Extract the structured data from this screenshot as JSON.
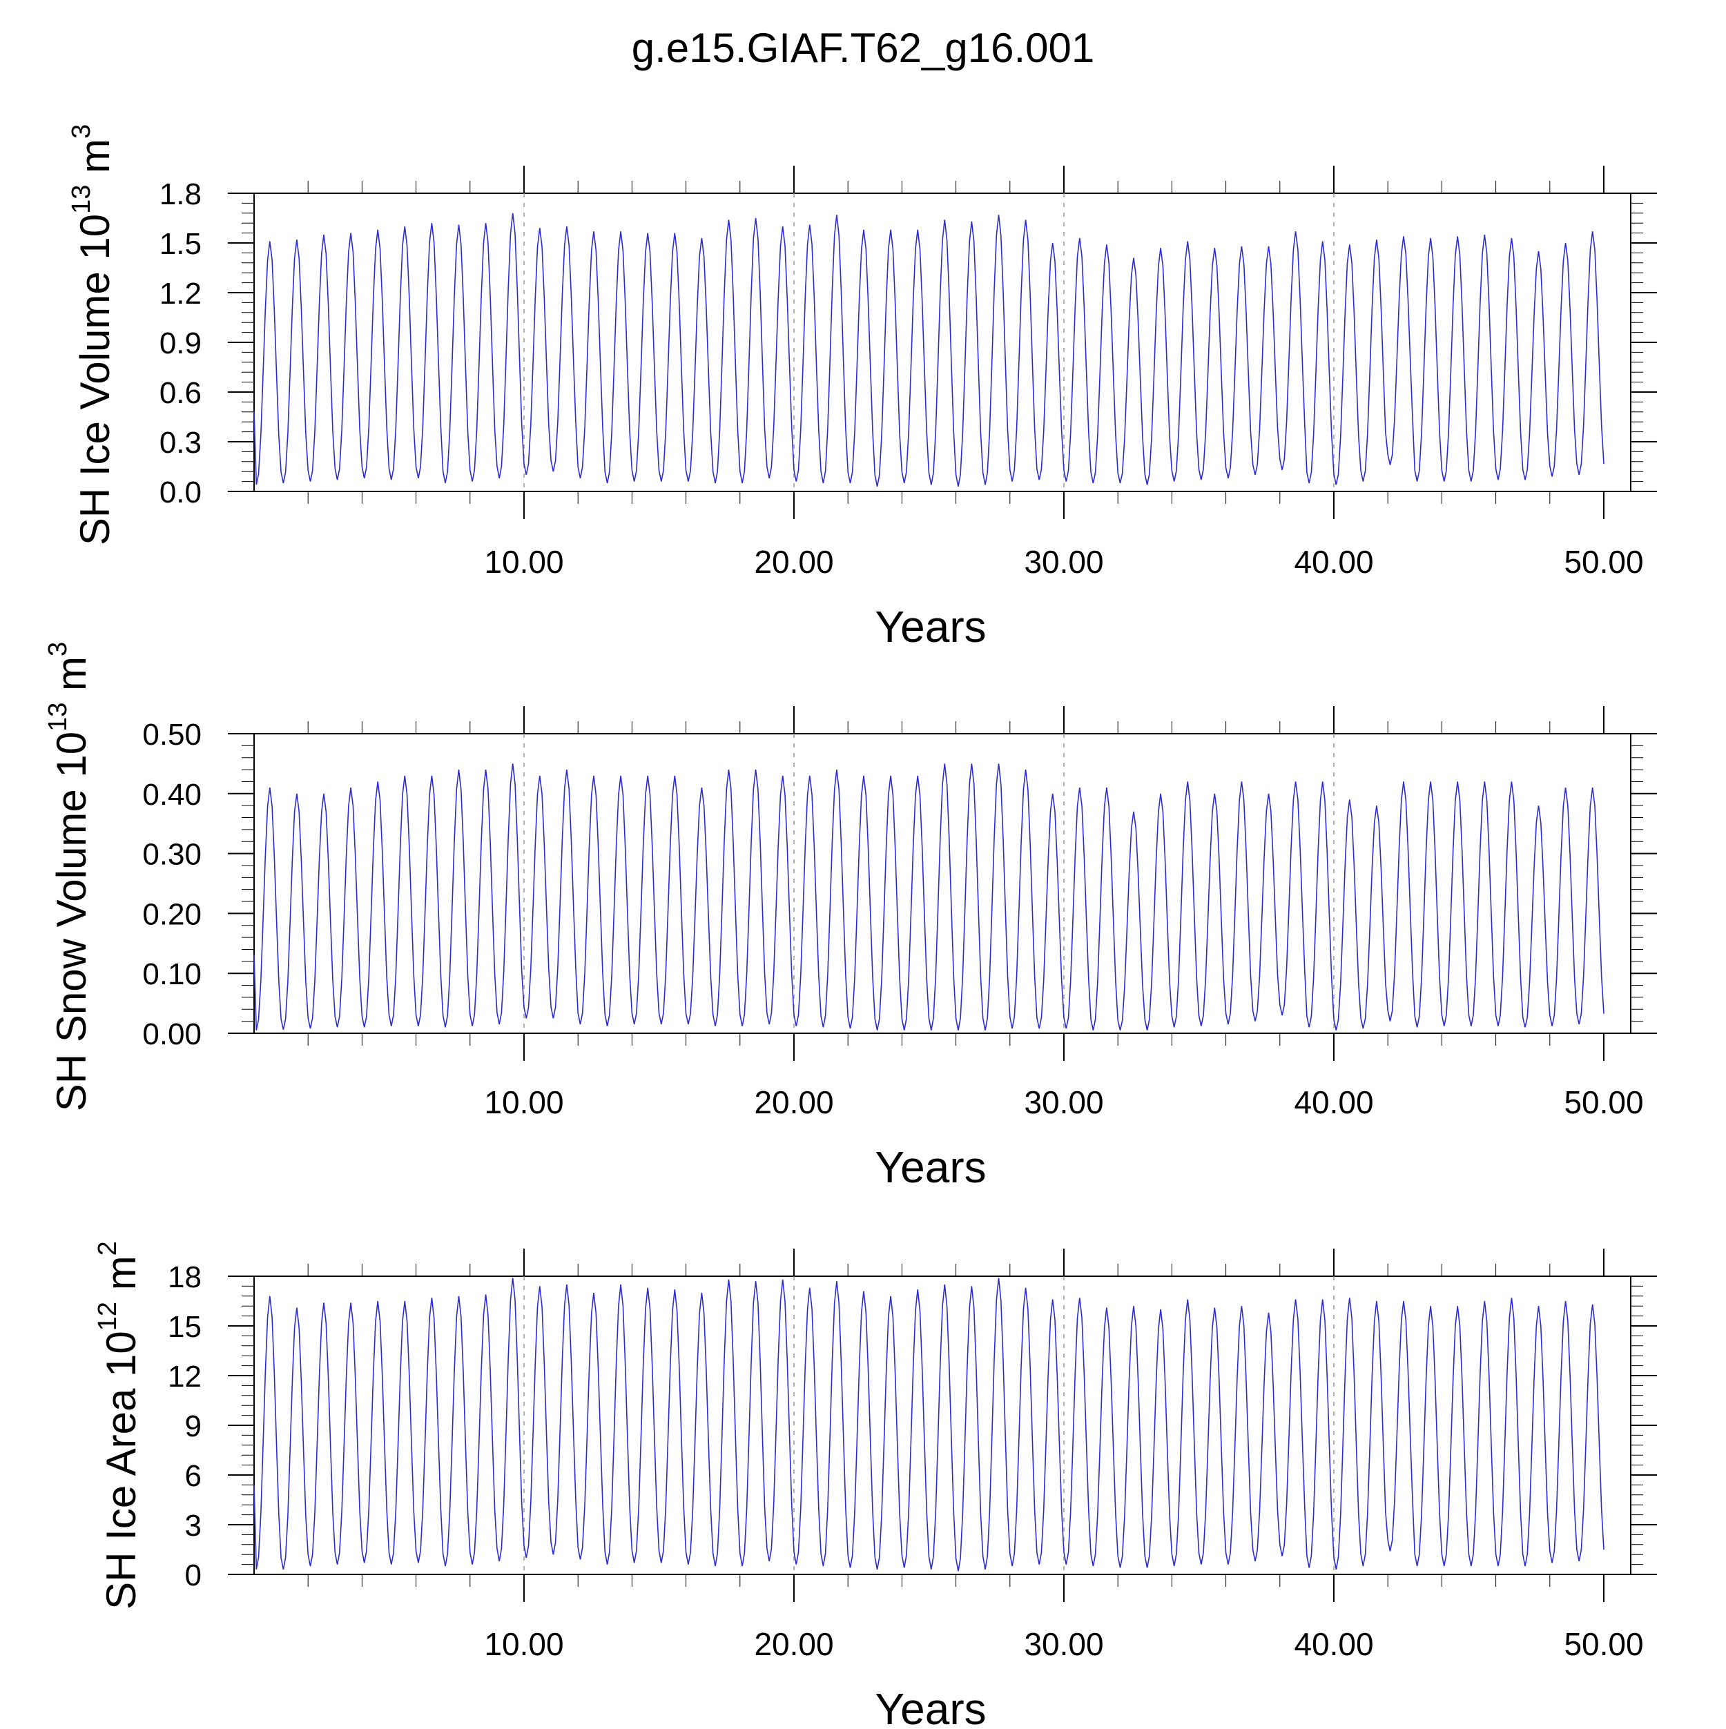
{
  "title": "g.e15.GIAF.T62_g16.001",
  "chart_data": [
    {
      "type": "line",
      "ylabel": "SH Ice Volume 10",
      "ylabel_exp": "13",
      "ylabel_unit": " m",
      "ylabel_unit_exp": "3",
      "xlabel": "Years",
      "xlim": [
        0,
        50
      ],
      "ylim": [
        0.0,
        1.8
      ],
      "xticks": [
        10,
        20,
        30,
        40,
        50
      ],
      "xtick_labels": [
        "10.00",
        "20.00",
        "30.00",
        "40.00",
        "50.00"
      ],
      "yticks": [
        0.0,
        0.3,
        0.6,
        0.9,
        1.2,
        1.5,
        1.8
      ],
      "ytick_labels": [
        "0.0",
        "0.3",
        "0.6",
        "0.9",
        "1.2",
        "1.5",
        "1.8"
      ],
      "series_color": "#2b2bd6",
      "annual_max": [
        1.51,
        1.52,
        1.55,
        1.56,
        1.58,
        1.6,
        1.62,
        1.61,
        1.62,
        1.68,
        1.59,
        1.6,
        1.57,
        1.57,
        1.56,
        1.56,
        1.53,
        1.64,
        1.65,
        1.6,
        1.61,
        1.67,
        1.58,
        1.58,
        1.58,
        1.64,
        1.63,
        1.67,
        1.64,
        1.5,
        1.53,
        1.49,
        1.41,
        1.47,
        1.51,
        1.47,
        1.48,
        1.48,
        1.57,
        1.51,
        1.49,
        1.52,
        1.54,
        1.53,
        1.54,
        1.55,
        1.53,
        1.45,
        1.5,
        1.57
      ],
      "annual_min": [
        0.04,
        0.05,
        0.06,
        0.07,
        0.08,
        0.07,
        0.08,
        0.05,
        0.06,
        0.08,
        0.1,
        0.12,
        0.08,
        0.05,
        0.06,
        0.06,
        0.06,
        0.05,
        0.05,
        0.08,
        0.06,
        0.05,
        0.05,
        0.03,
        0.05,
        0.04,
        0.03,
        0.04,
        0.06,
        0.07,
        0.06,
        0.05,
        0.05,
        0.04,
        0.06,
        0.07,
        0.08,
        0.1,
        0.13,
        0.05,
        0.04,
        0.06,
        0.16,
        0.06,
        0.06,
        0.06,
        0.07,
        0.07,
        0.09,
        0.1
      ]
    },
    {
      "type": "line",
      "ylabel": "SH Snow Volume 10",
      "ylabel_exp": "13",
      "ylabel_unit": " m",
      "ylabel_unit_exp": "3",
      "xlabel": "Years",
      "xlim": [
        0,
        50
      ],
      "ylim": [
        0.0,
        0.5
      ],
      "xticks": [
        10,
        20,
        30,
        40,
        50
      ],
      "xtick_labels": [
        "10.00",
        "20.00",
        "30.00",
        "40.00",
        "50.00"
      ],
      "yticks": [
        0.0,
        0.1,
        0.2,
        0.3,
        0.4,
        0.5
      ],
      "ytick_labels": [
        "0.00",
        "0.10",
        "0.20",
        "0.30",
        "0.40",
        "0.50"
      ],
      "series_color": "#2b2bd6",
      "annual_max": [
        0.41,
        0.4,
        0.4,
        0.41,
        0.42,
        0.43,
        0.43,
        0.44,
        0.44,
        0.45,
        0.43,
        0.44,
        0.43,
        0.43,
        0.43,
        0.43,
        0.41,
        0.44,
        0.44,
        0.43,
        0.43,
        0.44,
        0.43,
        0.43,
        0.43,
        0.45,
        0.45,
        0.45,
        0.44,
        0.4,
        0.41,
        0.41,
        0.37,
        0.4,
        0.42,
        0.4,
        0.42,
        0.4,
        0.42,
        0.42,
        0.39,
        0.38,
        0.42,
        0.42,
        0.42,
        0.42,
        0.42,
        0.38,
        0.41,
        0.41
      ],
      "annual_min": [
        0.005,
        0.006,
        0.008,
        0.01,
        0.01,
        0.012,
        0.012,
        0.01,
        0.012,
        0.015,
        0.025,
        0.025,
        0.015,
        0.012,
        0.015,
        0.015,
        0.015,
        0.012,
        0.012,
        0.015,
        0.012,
        0.01,
        0.008,
        0.005,
        0.005,
        0.005,
        0.005,
        0.005,
        0.008,
        0.008,
        0.008,
        0.005,
        0.005,
        0.005,
        0.01,
        0.012,
        0.015,
        0.02,
        0.03,
        0.01,
        0.005,
        0.008,
        0.02,
        0.01,
        0.012,
        0.012,
        0.012,
        0.01,
        0.012,
        0.015
      ]
    },
    {
      "type": "line",
      "ylabel": "SH Ice Area 10",
      "ylabel_exp": "12",
      "ylabel_unit": " m",
      "ylabel_unit_exp": "2",
      "xlabel": "Years",
      "xlim": [
        0,
        50
      ],
      "ylim": [
        0,
        18
      ],
      "xticks": [
        10,
        20,
        30,
        40,
        50
      ],
      "xtick_labels": [
        "10.00",
        "20.00",
        "30.00",
        "40.00",
        "50.00"
      ],
      "yticks": [
        0,
        3,
        6,
        9,
        12,
        15,
        18
      ],
      "ytick_labels": [
        "0",
        "3",
        "6",
        "9",
        "12",
        "15",
        "18"
      ],
      "series_color": "#2b2bd6",
      "annual_max": [
        16.8,
        16.1,
        16.4,
        16.4,
        16.5,
        16.5,
        16.7,
        16.8,
        16.9,
        17.9,
        17.4,
        17.5,
        17.0,
        17.5,
        17.3,
        17.2,
        17.0,
        17.8,
        17.7,
        17.8,
        17.3,
        17.7,
        17.1,
        16.8,
        17.2,
        17.5,
        17.4,
        17.9,
        17.3,
        16.6,
        16.7,
        16.1,
        16.2,
        16.0,
        16.6,
        16.1,
        16.2,
        15.8,
        16.6,
        16.6,
        16.7,
        16.5,
        16.5,
        16.2,
        16.2,
        16.5,
        16.7,
        16.2,
        16.5,
        16.3
      ],
      "annual_min": [
        0.3,
        0.3,
        0.5,
        0.6,
        0.7,
        0.6,
        0.7,
        0.5,
        0.6,
        0.8,
        1.0,
        1.2,
        0.9,
        0.6,
        0.7,
        0.7,
        0.6,
        0.5,
        0.5,
        0.8,
        0.6,
        0.5,
        0.4,
        0.3,
        0.4,
        0.3,
        0.2,
        0.3,
        0.5,
        0.6,
        0.6,
        0.5,
        0.4,
        0.4,
        0.5,
        0.6,
        0.6,
        0.8,
        1.1,
        0.4,
        0.3,
        0.5,
        1.4,
        0.5,
        0.5,
        0.5,
        0.5,
        0.5,
        0.7,
        0.8
      ]
    }
  ]
}
